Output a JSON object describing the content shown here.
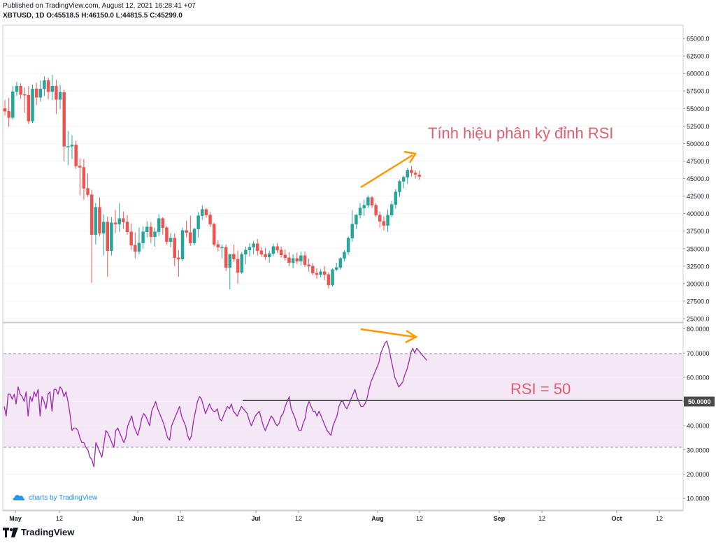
{
  "header": {
    "published": "Published on TradingView.com, August 12, 2021 16:28:41 +07",
    "ohlc": "XBTUSD, 1D  O:45518.5  H:46150.0  L:44815.5  C:45299.0"
  },
  "footer": {
    "brand": "TradingView",
    "badge": "charts by TradingView"
  },
  "colors": {
    "up": "#26a69a",
    "down": "#ef5350",
    "rsi_line": "#9c27b0",
    "rsi_band": "#f3e5f5",
    "annotation": "#ff9800",
    "annotation_text": "#e05d6f"
  },
  "annotations": {
    "price_text": "Tính hiệu phân kỳ đỉnh RSI",
    "rsi_text": "RSI = 50"
  },
  "chart_data": [
    {
      "type": "candlestick",
      "symbol": "XBTUSD",
      "interval": "1D",
      "x_tick_labels": [
        "May",
        "12",
        "Jun",
        "12",
        "Jul",
        "12",
        "Aug",
        "12",
        "Sep",
        "12",
        "Oct",
        "12"
      ],
      "y_ticks": [
        25000,
        27500,
        30000,
        32500,
        35000,
        37500,
        40000,
        42500,
        45000,
        47500,
        50000,
        52500,
        55000,
        57500,
        60000,
        62500,
        65000
      ],
      "y_tick_labels": [
        "25000.0",
        "27500.0",
        "30000.0",
        "32500.0",
        "35000.0",
        "37500.0",
        "40000.0",
        "42500.0",
        "45000.0",
        "47500.0",
        "50000.0",
        "52500.0",
        "55000.0",
        "57500.0",
        "60000.0",
        "62500.0",
        "65000.0"
      ],
      "ylim": [
        24600,
        66800
      ],
      "candles": [
        {
          "o": 55000,
          "h": 56200,
          "l": 54000,
          "c": 54600
        },
        {
          "o": 54600,
          "h": 56500,
          "l": 52400,
          "c": 53700
        },
        {
          "o": 53700,
          "h": 58200,
          "l": 53400,
          "c": 57400
        },
        {
          "o": 57400,
          "h": 58800,
          "l": 56800,
          "c": 58200
        },
        {
          "o": 58200,
          "h": 58600,
          "l": 56400,
          "c": 57000
        },
        {
          "o": 57000,
          "h": 58000,
          "l": 54400,
          "c": 56900
        },
        {
          "o": 56900,
          "h": 58200,
          "l": 52800,
          "c": 53200
        },
        {
          "o": 53200,
          "h": 58400,
          "l": 52900,
          "c": 57800
        },
        {
          "o": 57800,
          "h": 58700,
          "l": 55500,
          "c": 56600
        },
        {
          "o": 56600,
          "h": 59000,
          "l": 56000,
          "c": 57800
        },
        {
          "o": 57800,
          "h": 59600,
          "l": 56800,
          "c": 59000
        },
        {
          "o": 59000,
          "h": 59400,
          "l": 56300,
          "c": 57400
        },
        {
          "o": 57400,
          "h": 59800,
          "l": 56200,
          "c": 58200
        },
        {
          "o": 58200,
          "h": 59100,
          "l": 54200,
          "c": 56300
        },
        {
          "o": 56300,
          "h": 58400,
          "l": 54900,
          "c": 57300
        },
        {
          "o": 57300,
          "h": 57700,
          "l": 47500,
          "c": 49600
        },
        {
          "o": 49600,
          "h": 51800,
          "l": 46900,
          "c": 49600
        },
        {
          "o": 49600,
          "h": 51200,
          "l": 47800,
          "c": 49800
        },
        {
          "o": 49800,
          "h": 50400,
          "l": 46400,
          "c": 46800
        },
        {
          "o": 46800,
          "h": 47900,
          "l": 42600,
          "c": 46600
        },
        {
          "o": 46600,
          "h": 47800,
          "l": 42000,
          "c": 43600
        },
        {
          "o": 43600,
          "h": 45700,
          "l": 42400,
          "c": 42700
        },
        {
          "o": 42700,
          "h": 43400,
          "l": 30100,
          "c": 37000
        },
        {
          "o": 37000,
          "h": 41500,
          "l": 35600,
          "c": 40900
        },
        {
          "o": 40900,
          "h": 42300,
          "l": 36800,
          "c": 37200
        },
        {
          "o": 37200,
          "h": 39900,
          "l": 34000,
          "c": 38800
        },
        {
          "o": 38800,
          "h": 39600,
          "l": 31000,
          "c": 34700
        },
        {
          "o": 34700,
          "h": 39500,
          "l": 34000,
          "c": 38700
        },
        {
          "o": 38700,
          "h": 40500,
          "l": 37200,
          "c": 38500
        },
        {
          "o": 38500,
          "h": 41500,
          "l": 37400,
          "c": 39300
        },
        {
          "o": 39300,
          "h": 40300,
          "l": 37800,
          "c": 38800
        },
        {
          "o": 38800,
          "h": 39800,
          "l": 37000,
          "c": 37400
        },
        {
          "o": 37400,
          "h": 38600,
          "l": 34800,
          "c": 35500
        },
        {
          "o": 35500,
          "h": 37300,
          "l": 33600,
          "c": 34600
        },
        {
          "o": 34600,
          "h": 38000,
          "l": 34200,
          "c": 35800
        },
        {
          "o": 35800,
          "h": 38200,
          "l": 35000,
          "c": 37400
        },
        {
          "o": 37400,
          "h": 38900,
          "l": 36600,
          "c": 38100
        },
        {
          "o": 38100,
          "h": 38800,
          "l": 35800,
          "c": 36700
        },
        {
          "o": 36700,
          "h": 38000,
          "l": 35300,
          "c": 37400
        },
        {
          "o": 37400,
          "h": 39900,
          "l": 36800,
          "c": 39300
        },
        {
          "o": 39300,
          "h": 39500,
          "l": 37000,
          "c": 38000
        },
        {
          "o": 38000,
          "h": 38200,
          "l": 35600,
          "c": 36000
        },
        {
          "o": 36000,
          "h": 37200,
          "l": 35200,
          "c": 36500
        },
        {
          "o": 36500,
          "h": 37200,
          "l": 32500,
          "c": 33700
        },
        {
          "o": 33700,
          "h": 34800,
          "l": 31000,
          "c": 33500
        },
        {
          "o": 33500,
          "h": 38000,
          "l": 33200,
          "c": 37600
        },
        {
          "o": 37600,
          "h": 39000,
          "l": 36600,
          "c": 37300
        },
        {
          "o": 37300,
          "h": 39700,
          "l": 35400,
          "c": 35800
        },
        {
          "o": 35800,
          "h": 38000,
          "l": 35500,
          "c": 37800
        },
        {
          "o": 37800,
          "h": 40200,
          "l": 36600,
          "c": 39700
        },
        {
          "o": 39700,
          "h": 41200,
          "l": 39100,
          "c": 40600
        },
        {
          "o": 40600,
          "h": 40800,
          "l": 39400,
          "c": 39800
        },
        {
          "o": 39800,
          "h": 40200,
          "l": 38100,
          "c": 38500
        },
        {
          "o": 38500,
          "h": 38700,
          "l": 35300,
          "c": 35600
        },
        {
          "o": 35600,
          "h": 36200,
          "l": 34600,
          "c": 35200
        },
        {
          "o": 35200,
          "h": 35600,
          "l": 33600,
          "c": 35200
        },
        {
          "o": 35200,
          "h": 35600,
          "l": 31800,
          "c": 32300
        },
        {
          "o": 32300,
          "h": 34200,
          "l": 29200,
          "c": 34200
        },
        {
          "o": 34200,
          "h": 35600,
          "l": 33100,
          "c": 33500
        },
        {
          "o": 33500,
          "h": 34700,
          "l": 30000,
          "c": 31600
        },
        {
          "o": 31600,
          "h": 34500,
          "l": 31400,
          "c": 34200
        },
        {
          "o": 34200,
          "h": 35300,
          "l": 32800,
          "c": 34800
        },
        {
          "o": 34800,
          "h": 35800,
          "l": 33900,
          "c": 35200
        },
        {
          "o": 35200,
          "h": 36100,
          "l": 34200,
          "c": 35700
        },
        {
          "o": 35700,
          "h": 36400,
          "l": 34000,
          "c": 34700
        },
        {
          "o": 34700,
          "h": 35200,
          "l": 33800,
          "c": 34200
        },
        {
          "o": 34200,
          "h": 35100,
          "l": 33400,
          "c": 33800
        },
        {
          "o": 33800,
          "h": 34700,
          "l": 33000,
          "c": 34300
        },
        {
          "o": 34300,
          "h": 35700,
          "l": 33900,
          "c": 35300
        },
        {
          "o": 35300,
          "h": 35800,
          "l": 34400,
          "c": 34800
        },
        {
          "o": 34800,
          "h": 35300,
          "l": 33700,
          "c": 34100
        },
        {
          "o": 34100,
          "h": 34900,
          "l": 33300,
          "c": 33700
        },
        {
          "o": 33700,
          "h": 34500,
          "l": 32500,
          "c": 33000
        },
        {
          "o": 33000,
          "h": 34200,
          "l": 32200,
          "c": 33600
        },
        {
          "o": 33600,
          "h": 34400,
          "l": 32800,
          "c": 33200
        },
        {
          "o": 33200,
          "h": 34600,
          "l": 32600,
          "c": 34000
        },
        {
          "o": 34000,
          "h": 34600,
          "l": 32400,
          "c": 32700
        },
        {
          "o": 32700,
          "h": 33600,
          "l": 31700,
          "c": 32500
        },
        {
          "o": 32500,
          "h": 32900,
          "l": 31200,
          "c": 31500
        },
        {
          "o": 31500,
          "h": 32200,
          "l": 30700,
          "c": 31300
        },
        {
          "o": 31300,
          "h": 32100,
          "l": 30900,
          "c": 31700
        },
        {
          "o": 31700,
          "h": 32500,
          "l": 30500,
          "c": 31300
        },
        {
          "o": 31300,
          "h": 31600,
          "l": 29300,
          "c": 29800
        },
        {
          "o": 29800,
          "h": 32200,
          "l": 29600,
          "c": 32000
        },
        {
          "o": 32000,
          "h": 33000,
          "l": 31800,
          "c": 32300
        },
        {
          "o": 32300,
          "h": 33800,
          "l": 32000,
          "c": 33600
        },
        {
          "o": 33600,
          "h": 34800,
          "l": 33200,
          "c": 34500
        },
        {
          "o": 34500,
          "h": 36700,
          "l": 34100,
          "c": 36500
        },
        {
          "o": 36500,
          "h": 40500,
          "l": 36000,
          "c": 38500
        },
        {
          "o": 38500,
          "h": 39900,
          "l": 37800,
          "c": 39800
        },
        {
          "o": 39800,
          "h": 41500,
          "l": 39300,
          "c": 40800
        },
        {
          "o": 40800,
          "h": 42000,
          "l": 39700,
          "c": 41200
        },
        {
          "o": 41200,
          "h": 42600,
          "l": 40800,
          "c": 42300
        },
        {
          "o": 42300,
          "h": 42500,
          "l": 40800,
          "c": 41200
        },
        {
          "o": 41200,
          "h": 41500,
          "l": 39500,
          "c": 39800
        },
        {
          "o": 39800,
          "h": 40300,
          "l": 38000,
          "c": 38900
        },
        {
          "o": 38900,
          "h": 39600,
          "l": 37600,
          "c": 38300
        },
        {
          "o": 38300,
          "h": 40600,
          "l": 37400,
          "c": 39800
        },
        {
          "o": 39800,
          "h": 41800,
          "l": 39500,
          "c": 41300
        },
        {
          "o": 41300,
          "h": 43500,
          "l": 40700,
          "c": 43100
        },
        {
          "o": 43100,
          "h": 44800,
          "l": 42400,
          "c": 44600
        },
        {
          "o": 44600,
          "h": 45400,
          "l": 43600,
          "c": 45200
        },
        {
          "o": 45200,
          "h": 46500,
          "l": 44200,
          "c": 46200
        },
        {
          "o": 46200,
          "h": 46800,
          "l": 45300,
          "c": 45800
        },
        {
          "o": 45800,
          "h": 46200,
          "l": 45000,
          "c": 45600
        },
        {
          "o": 45518.5,
          "h": 46150,
          "l": 44815.5,
          "c": 45299
        }
      ]
    },
    {
      "type": "line",
      "name": "RSI",
      "y_ticks": [
        10,
        20,
        30,
        40,
        50,
        60,
        70,
        80
      ],
      "y_tick_labels": [
        "10.0000",
        "20.0000",
        "30.0000",
        "40.0000",
        "50.0000",
        "60.0000",
        "70.0000",
        "80.0000"
      ],
      "ylim": [
        5.4,
        82.2
      ],
      "band": [
        30,
        70
      ],
      "reference_line": 50,
      "reference_label": "50.0000",
      "values": [
        48,
        44,
        53,
        53,
        51,
        53,
        49,
        56,
        53,
        52,
        50,
        54,
        44,
        52,
        50,
        54,
        52,
        55,
        44,
        52,
        50,
        47,
        53,
        54,
        46,
        55,
        55,
        53,
        56,
        55,
        52,
        54,
        50,
        45,
        38,
        39,
        39,
        38,
        35,
        33,
        33,
        31,
        30,
        27,
        26,
        23,
        33,
        31,
        29,
        27,
        32,
        38,
        37,
        35,
        33,
        31,
        38,
        39,
        37,
        35,
        33,
        35,
        40,
        42,
        44,
        40,
        38,
        36,
        39,
        43,
        45,
        44,
        42,
        40,
        46,
        48,
        50,
        47,
        45,
        43,
        41,
        38,
        35,
        34,
        40,
        42,
        44,
        46,
        48,
        44,
        42,
        40,
        36,
        34,
        36,
        42,
        46,
        50,
        52,
        51,
        48,
        45,
        47,
        49,
        47,
        46,
        46,
        47,
        43,
        42,
        44,
        46,
        48,
        47,
        49,
        46,
        45,
        44,
        46,
        48,
        47,
        46,
        45,
        42,
        40,
        42,
        44,
        45,
        46,
        43,
        40,
        38,
        40,
        42,
        44,
        43,
        41,
        40,
        41,
        44,
        45,
        48,
        50,
        52,
        47,
        45,
        43,
        40,
        38,
        38,
        41,
        43,
        48,
        50,
        48,
        46,
        46,
        44,
        46,
        44,
        42,
        40,
        38,
        37,
        36,
        40,
        42,
        44,
        48,
        50,
        50,
        48,
        47,
        49,
        51,
        53,
        55,
        52,
        50,
        48,
        48,
        49,
        51,
        55,
        58,
        60,
        62,
        64,
        66,
        70,
        72,
        74,
        75,
        72,
        68,
        64,
        60,
        58,
        56,
        57,
        58,
        61,
        63,
        66,
        70,
        72,
        70,
        72,
        71,
        70,
        69,
        68,
        67
      ],
      "annotations": [
        {
          "type": "arrow",
          "from": [
            55,
            7.5
          ],
          "to": [
            64,
            72.5
          ]
        }
      ]
    }
  ]
}
